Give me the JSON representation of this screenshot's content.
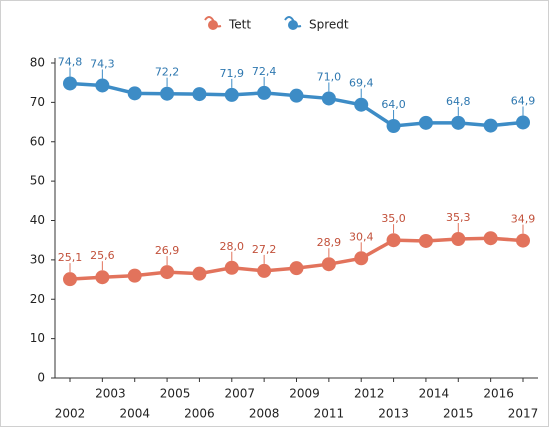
{
  "chart_data": {
    "type": "line",
    "categories": [
      "2002",
      "2003",
      "2004",
      "2005",
      "2006",
      "2007",
      "2008",
      "2009",
      "2011",
      "2012",
      "2013",
      "2014",
      "2015",
      "2016",
      "2017"
    ],
    "series": [
      {
        "name": "Tett",
        "color": "#e2735c",
        "label_color": "#c2513b",
        "values": [
          25.1,
          25.6,
          26.0,
          26.9,
          26.5,
          28.0,
          27.2,
          27.9,
          28.9,
          30.4,
          35.0,
          34.8,
          35.3,
          35.5,
          34.9
        ],
        "value_labels": [
          "25,1",
          "25,6",
          null,
          "26,9",
          null,
          "28,0",
          "27,2",
          null,
          "28,9",
          "30,4",
          "35,0",
          null,
          "35,3",
          null,
          "34,9"
        ]
      },
      {
        "name": "Spredt",
        "color": "#3d8cc6",
        "label_color": "#2f78b0",
        "values": [
          74.8,
          74.3,
          72.3,
          72.2,
          72.1,
          71.9,
          72.4,
          71.7,
          71.0,
          69.4,
          64.0,
          64.8,
          64.8,
          64.1,
          64.9
        ],
        "value_labels": [
          "74,8",
          "74,3",
          null,
          "72,2",
          null,
          "71,9",
          "72,4",
          null,
          "71,0",
          "69,4",
          "64,0",
          null,
          "64,8",
          null,
          "64,9"
        ]
      }
    ],
    "ylim": [
      0,
      80
    ],
    "yticks": [
      0,
      10,
      20,
      30,
      40,
      50,
      60,
      70,
      80
    ],
    "grid": false,
    "legend": "top"
  }
}
